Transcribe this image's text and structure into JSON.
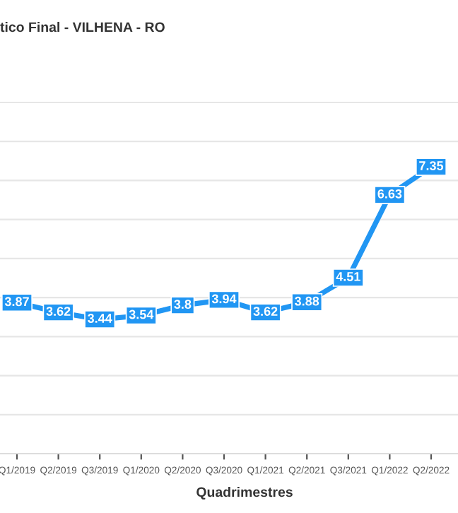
{
  "chart_data": {
    "type": "line",
    "title": "tico Final - VILHENA - RO",
    "xlabel": "Quadrimestres",
    "categories": [
      "Q1/2019",
      "Q2/2019",
      "Q3/2019",
      "Q1/2020",
      "Q2/2020",
      "Q3/2020",
      "Q1/2021",
      "Q2/2021",
      "Q3/2021",
      "Q1/2022",
      "Q2/2022"
    ],
    "series": [
      {
        "color": "#2196f3",
        "values": [
          3.87,
          3.62,
          3.44,
          3.54,
          3.8,
          3.94,
          3.62,
          3.88,
          4.51,
          6.63,
          7.35
        ]
      }
    ],
    "tick_labels": "x",
    "grid": "y",
    "data_labels": true,
    "marker": "square",
    "line_style": "solid"
  }
}
